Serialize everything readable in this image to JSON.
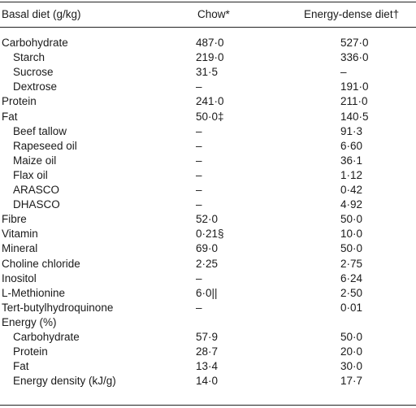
{
  "table": {
    "headers": {
      "label": "Basal diet (g/kg)",
      "chow": "Chow*",
      "energy_dense": "Energy-dense diet†"
    },
    "rows": [
      {
        "label": "Carbohydrate",
        "indent": false,
        "chow": "487·0",
        "ed": "527·0"
      },
      {
        "label": "Starch",
        "indent": true,
        "chow": "219·0",
        "ed": "336·0"
      },
      {
        "label": "Sucrose",
        "indent": true,
        "chow": "31·5",
        "ed": "–"
      },
      {
        "label": "Dextrose",
        "indent": true,
        "chow": "–",
        "ed": "191·0"
      },
      {
        "label": "Protein",
        "indent": false,
        "chow": "241·0",
        "ed": "211·0"
      },
      {
        "label": "Fat",
        "indent": false,
        "chow": "50·0‡",
        "ed": "140·5"
      },
      {
        "label": "Beef tallow",
        "indent": true,
        "chow": "–",
        "ed": "91·3"
      },
      {
        "label": "Rapeseed oil",
        "indent": true,
        "chow": "–",
        "ed": "6·60"
      },
      {
        "label": "Maize oil",
        "indent": true,
        "chow": "–",
        "ed": "36·1"
      },
      {
        "label": "Flax oil",
        "indent": true,
        "chow": "–",
        "ed": "1·12"
      },
      {
        "label": "ARASCO",
        "indent": true,
        "chow": "–",
        "ed": "0·42"
      },
      {
        "label": "DHASCO",
        "indent": true,
        "chow": "–",
        "ed": "4·92"
      },
      {
        "label": "Fibre",
        "indent": false,
        "chow": "52·0",
        "ed": "50·0"
      },
      {
        "label": "Vitamin",
        "indent": false,
        "chow": "0·21§",
        "ed": "10·0"
      },
      {
        "label": "Mineral",
        "indent": false,
        "chow": "69·0",
        "ed": "50·0"
      },
      {
        "label": "Choline chloride",
        "indent": false,
        "chow": "2·25",
        "ed": "2·75"
      },
      {
        "label": "Inositol",
        "indent": false,
        "chow": "–",
        "ed": "6·24"
      },
      {
        "label": "L-Methionine",
        "indent": false,
        "chow": "6·0||",
        "ed": "2·50"
      },
      {
        "label": "Tert-butylhydroquinone",
        "indent": false,
        "chow": "–",
        "ed": "0·01"
      },
      {
        "label": "Energy (%)",
        "indent": false,
        "chow": "",
        "ed": ""
      },
      {
        "label": "Carbohydrate",
        "indent": true,
        "chow": "57·9",
        "ed": "50·0"
      },
      {
        "label": "Protein",
        "indent": true,
        "chow": "28·7",
        "ed": "20·0"
      },
      {
        "label": "Fat",
        "indent": true,
        "chow": "13·4",
        "ed": "30·0"
      },
      {
        "label": "Energy density (kJ/g)",
        "indent": true,
        "chow": "14·0",
        "ed": "17·7"
      }
    ]
  }
}
